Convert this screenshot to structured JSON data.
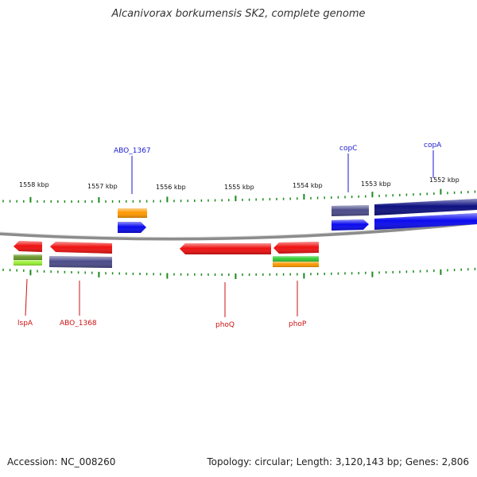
{
  "title": "Alcanivorax borkumensis SK2, complete genome",
  "accession": "Accession: NC_008260",
  "topology": "Topology: circular; Length: 3,120,143 bp; Genes: 2,806",
  "ruler": {
    "labels": [
      "1558 kbp",
      "1557 kbp",
      "1556 kbp",
      "1555 kbp",
      "1554 kbp",
      "1553 kbp",
      "1552 kbp"
    ]
  },
  "colors": {
    "backbone": "#9a9a9a",
    "tick": "#1a8a1a",
    "label_top": "#1a1ad0",
    "label_bottom": "#cc1111",
    "red": "#ee1111",
    "blue": "#0a0aee",
    "navy": "#0d1080",
    "slate": "#4b4b8a",
    "orange": "#ff9900",
    "green": "#33cc33",
    "olive": "#6b9a2a",
    "lime": "#99ee33"
  },
  "labels": {
    "top": [
      "ABO_1367",
      "copC",
      "copA"
    ],
    "bottom": [
      "lspA",
      "ABO_1368",
      "phoQ",
      "phoP"
    ]
  }
}
